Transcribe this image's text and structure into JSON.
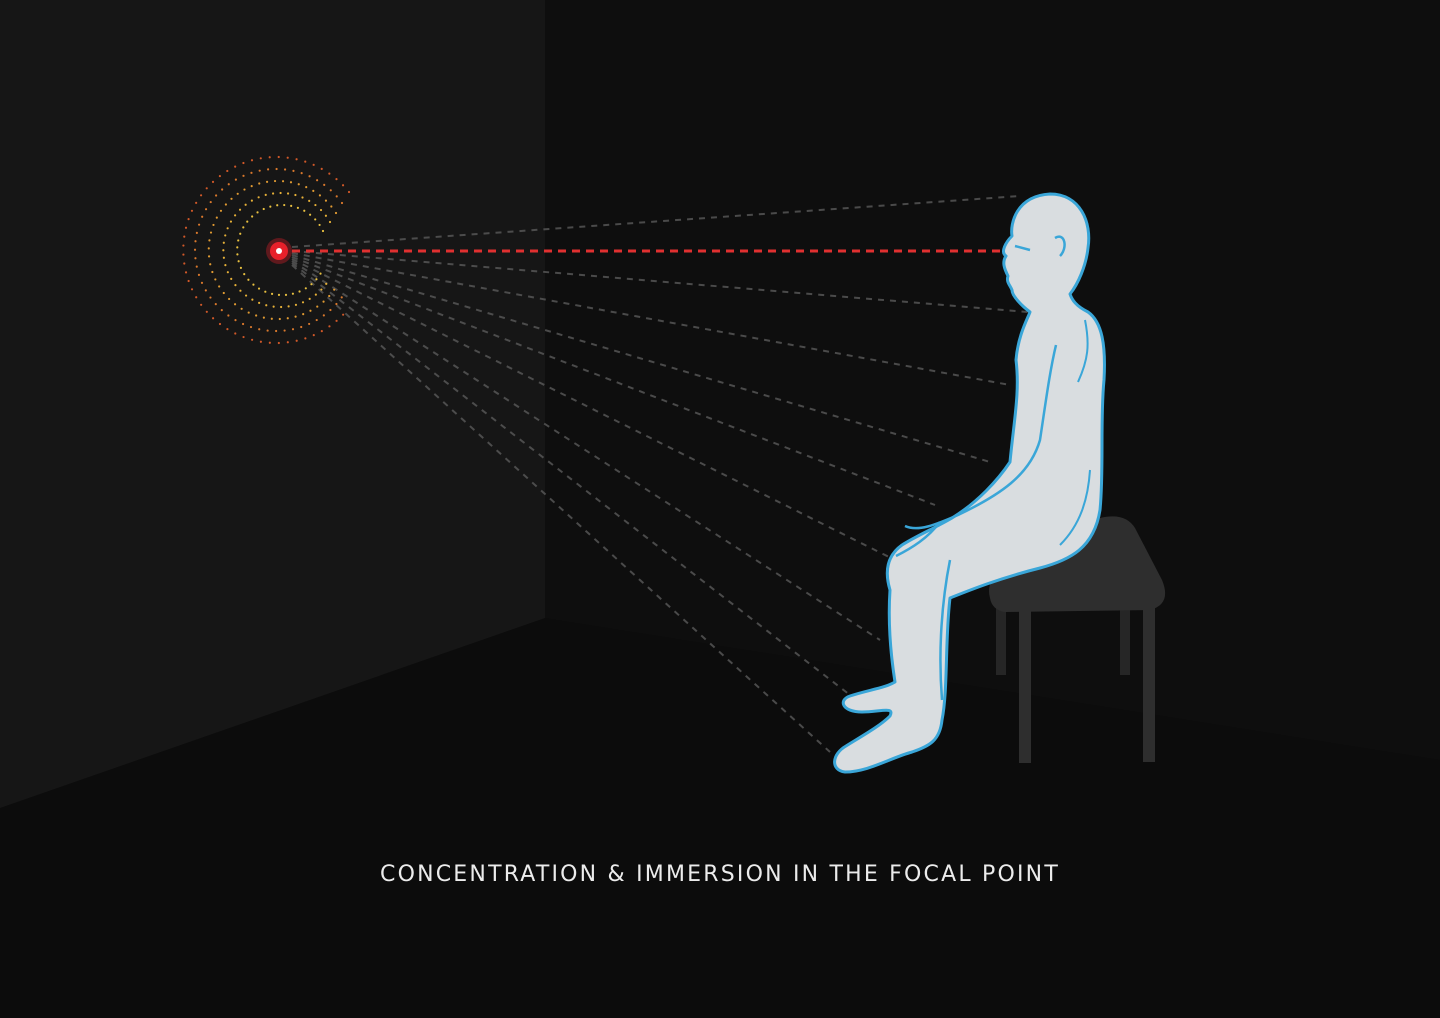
{
  "caption": "CONCENTRATION & IMMERSION IN THE FOCAL POINT",
  "colors": {
    "background": "#0c0c0c",
    "wall": "#161616",
    "floor": "#0c0c0c",
    "focal_point": "#e8202a",
    "gaze_line": "#e03030",
    "peripheral_lines": "#5a5a5a",
    "figure_fill": "#d9dde0",
    "figure_outline": "#3aa6d8",
    "stool": "#2e2e2e",
    "ring_inner": "#e8c040",
    "ring_outer": "#d05828"
  },
  "icons": {
    "focal_point": "focal-point-target-icon",
    "figure": "seated-person-figure",
    "stool": "stool-icon"
  }
}
